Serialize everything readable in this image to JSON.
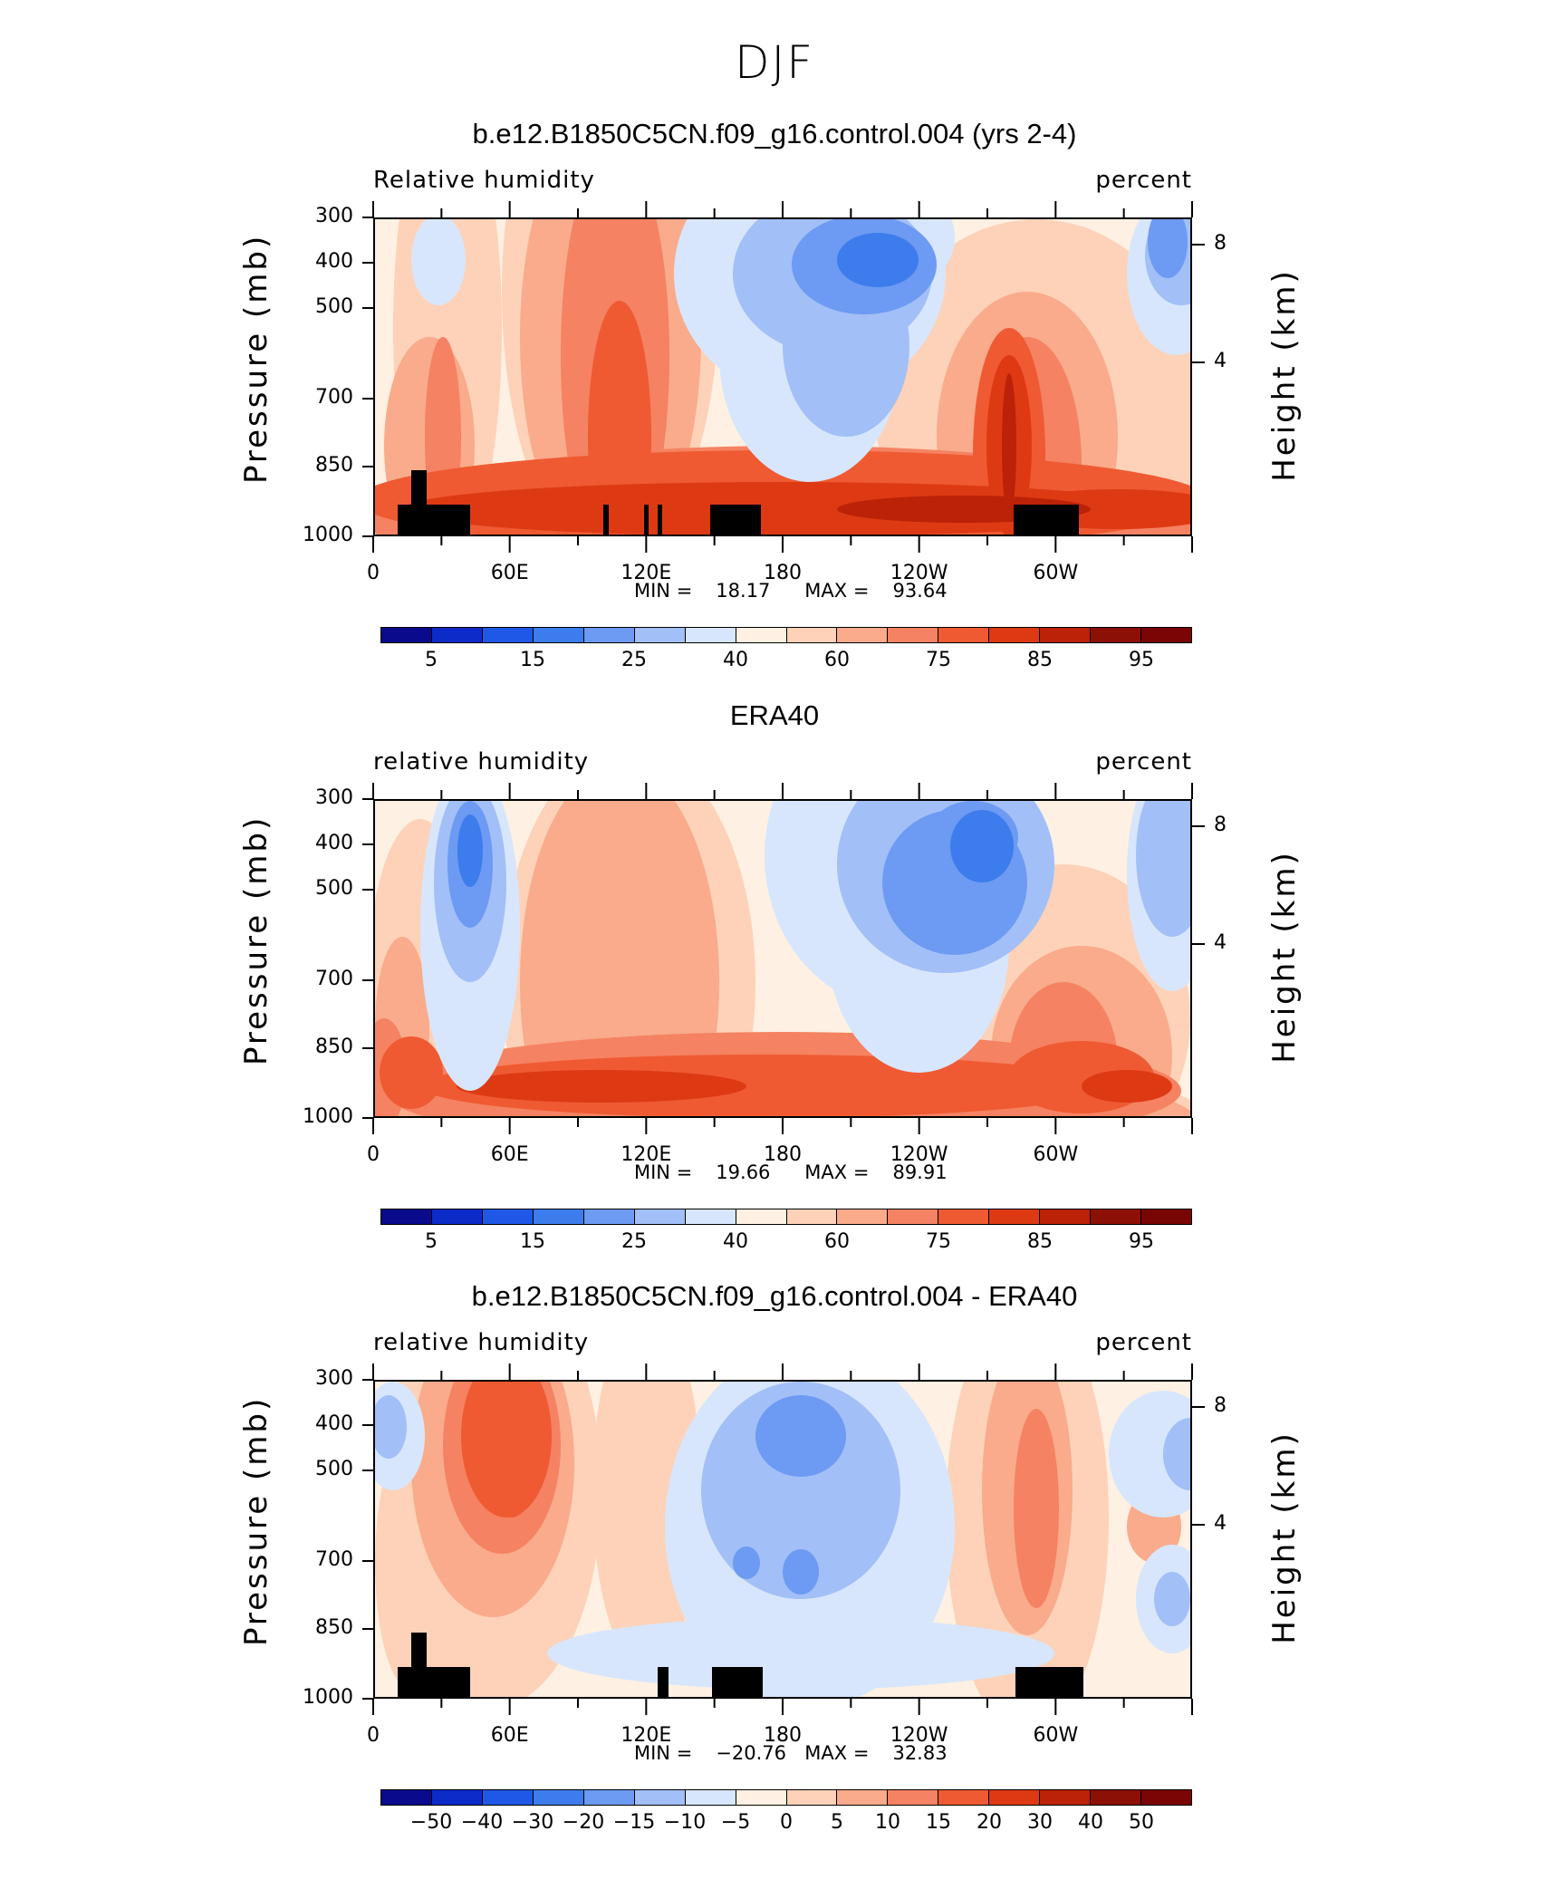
{
  "title": "DJF",
  "axes": {
    "ylabel_left": "Pressure (mb)",
    "ylabel_right": "Height (km)",
    "pressure_ticks": [
      "300",
      "400",
      "500",
      "700",
      "850",
      "1000"
    ],
    "height_ticks": [
      "8",
      "4"
    ],
    "lon_ticks": [
      "0",
      "60E",
      "120E",
      "180",
      "120W",
      "60W"
    ]
  },
  "palette": [
    "#0a0a8c",
    "#0d2bc9",
    "#1f58e6",
    "#3d7ced",
    "#6d9af2",
    "#a2bff7",
    "#d7e6fc",
    "#fef0e2",
    "#fdd2b8",
    "#f9ab8b",
    "#f58262",
    "#ef5a32",
    "#dd3a14",
    "#bb2208",
    "#8c1006"
  ],
  "panels": [
    {
      "title": "b.e12.B1850C5CN.f09_g16.control.004 (yrs 2-4)",
      "left_label": "Relative humidity",
      "right_label": "percent",
      "min_label": "MIN =",
      "min_value": "18.17",
      "max_label": "MAX =",
      "max_value": "93.64",
      "colorbar_labels": [
        "5",
        "15",
        "25",
        "40",
        "60",
        "75",
        "85",
        "95"
      ],
      "has_topography": true
    },
    {
      "title": "ERA40",
      "left_label": "relative humidity",
      "right_label": "percent",
      "min_label": "MIN =",
      "min_value": "19.66",
      "max_label": "MAX =",
      "max_value": "89.91",
      "colorbar_labels": [
        "5",
        "15",
        "25",
        "40",
        "60",
        "75",
        "85",
        "95"
      ],
      "has_topography": false
    },
    {
      "title": "b.e12.B1850C5CN.f09_g16.control.004 - ERA40",
      "left_label": "relative humidity",
      "right_label": "percent",
      "min_label": "MIN =",
      "min_value": "−20.76",
      "max_label": "MAX =",
      "max_value": "32.83",
      "colorbar_labels": [
        "−50",
        "−40",
        "−30",
        "−20",
        "−15",
        "−10",
        "−5",
        "0",
        "5",
        "10",
        "15",
        "20",
        "30",
        "40",
        "50"
      ],
      "has_topography": true
    }
  ],
  "chart_data": [
    {
      "type": "heatmap",
      "title": "b.e12.B1850C5CN.f09_g16.control.004 (yrs 2-4)",
      "subtitle_left": "Relative humidity",
      "subtitle_right": "percent",
      "xlabel": "",
      "ylabel": "Pressure (mb)",
      "ylabel_right": "Height (km)",
      "x_ticks": [
        "0",
        "60E",
        "120E",
        "180",
        "120W",
        "60W"
      ],
      "y_ticks": [
        300,
        400,
        500,
        700,
        850,
        1000
      ],
      "levels": [
        5,
        15,
        25,
        40,
        60,
        75,
        85,
        95
      ],
      "min": 18.17,
      "max": 93.64,
      "features": [
        {
          "lon": 215,
          "p": 400,
          "value": 25,
          "note": "dry minimum, central east Pacific upper troposphere"
        },
        {
          "lon": 345,
          "p": 400,
          "value": 30,
          "note": "dry pocket near east edge"
        },
        {
          "lon": 30,
          "p": 450,
          "value": 40
        },
        {
          "lon": 120,
          "p": 550,
          "value": 85
        },
        {
          "lon": 280,
          "p": 700,
          "value": 90
        },
        {
          "lon": 200,
          "p": 940,
          "value": 93
        }
      ]
    },
    {
      "type": "heatmap",
      "title": "ERA40",
      "subtitle_left": "relative humidity",
      "subtitle_right": "percent",
      "xlabel": "",
      "ylabel": "Pressure (mb)",
      "ylabel_right": "Height (km)",
      "x_ticks": [
        "0",
        "60E",
        "120E",
        "180",
        "120W",
        "60W"
      ],
      "y_ticks": [
        300,
        400,
        500,
        700,
        850,
        1000
      ],
      "levels": [
        5,
        15,
        25,
        40,
        60,
        75,
        85,
        95
      ],
      "min": 19.66,
      "max": 89.91,
      "features": [
        {
          "lon": 42,
          "p": 420,
          "value": 25,
          "note": "dry column near 40E"
        },
        {
          "lon": 255,
          "p": 420,
          "value": 20,
          "note": "dry minimum east Pacific"
        },
        {
          "lon": 350,
          "p": 450,
          "value": 40
        },
        {
          "lon": 130,
          "p": 600,
          "value": 75
        },
        {
          "lon": 150,
          "p": 940,
          "value": 88
        },
        {
          "lon": 300,
          "p": 900,
          "value": 88
        }
      ]
    },
    {
      "type": "heatmap",
      "title": "b.e12.B1850C5CN.f09_g16.control.004 - ERA40",
      "subtitle_left": "relative humidity",
      "subtitle_right": "percent",
      "xlabel": "",
      "ylabel": "Pressure (mb)",
      "ylabel_right": "Height (km)",
      "x_ticks": [
        "0",
        "60E",
        "120E",
        "180",
        "120W",
        "60W"
      ],
      "y_ticks": [
        300,
        400,
        500,
        700,
        850,
        1000
      ],
      "levels": [
        -50,
        -40,
        -30,
        -20,
        -15,
        -10,
        -5,
        0,
        5,
        10,
        15,
        20,
        30,
        40,
        50
      ],
      "min": -20.76,
      "max": 32.83,
      "features": [
        {
          "lon": 55,
          "p": 420,
          "value": 32,
          "note": "moist bias over 40-80E upper levels"
        },
        {
          "lon": 10,
          "p": 400,
          "value": -12
        },
        {
          "lon": 195,
          "p": 500,
          "value": -10
        },
        {
          "lon": 185,
          "p": 700,
          "value": -12
        },
        {
          "lon": 295,
          "p": 600,
          "value": 12
        },
        {
          "lon": 350,
          "p": 400,
          "value": -12
        }
      ]
    }
  ]
}
